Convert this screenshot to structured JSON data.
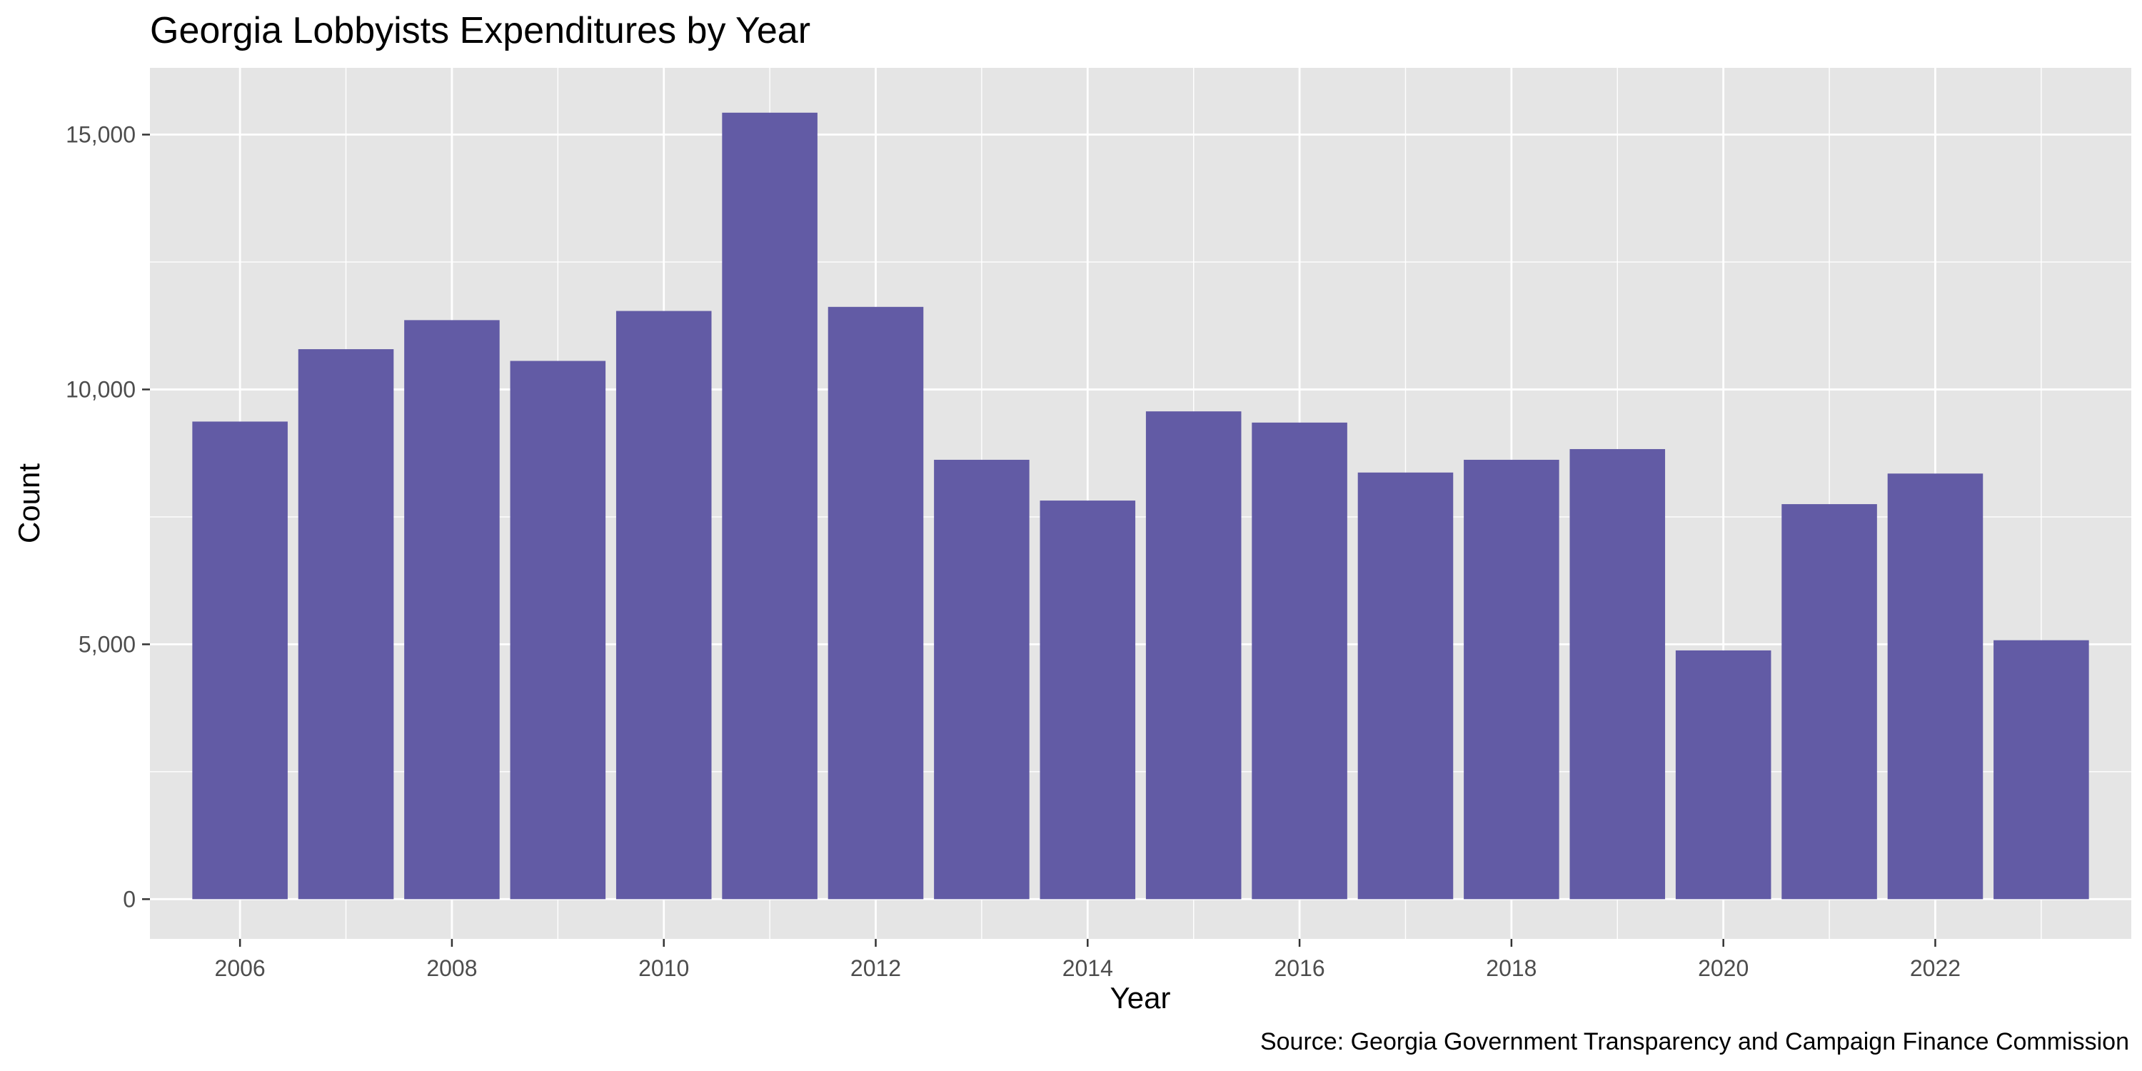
{
  "chart_data": {
    "type": "bar",
    "title": "Georgia Lobbyists Expenditures by Year",
    "xlabel": "Year",
    "ylabel": "Count",
    "caption": "Source: Georgia Government Transparency and Campaign Finance Commission",
    "categories": [
      2006,
      2007,
      2008,
      2009,
      2010,
      2011,
      2012,
      2013,
      2014,
      2015,
      2016,
      2017,
      2018,
      2019,
      2020,
      2021,
      2022,
      2023
    ],
    "values": [
      9370,
      10790,
      11360,
      10560,
      11540,
      15430,
      11620,
      8620,
      7820,
      9570,
      9350,
      8370,
      8620,
      8830,
      4880,
      7750,
      8350,
      5080
    ],
    "x_tick_labels": [
      "2006",
      "2008",
      "2010",
      "2012",
      "2014",
      "2016",
      "2018",
      "2020",
      "2022"
    ],
    "y_tick_labels": [
      "0",
      "5,000",
      "10,000",
      "15,000"
    ],
    "y_ticks": [
      0,
      5000,
      10000,
      15000
    ],
    "ylim": [
      -780,
      16310
    ],
    "xlim": [
      2005.15,
      2023.85
    ],
    "grid": true,
    "legend": "none",
    "colors": {
      "bar": "#625ba5",
      "panel": "#e5e5e5",
      "gridline": "#ffffff",
      "tick_text": "#4d4d4d",
      "text": "#000000"
    }
  }
}
